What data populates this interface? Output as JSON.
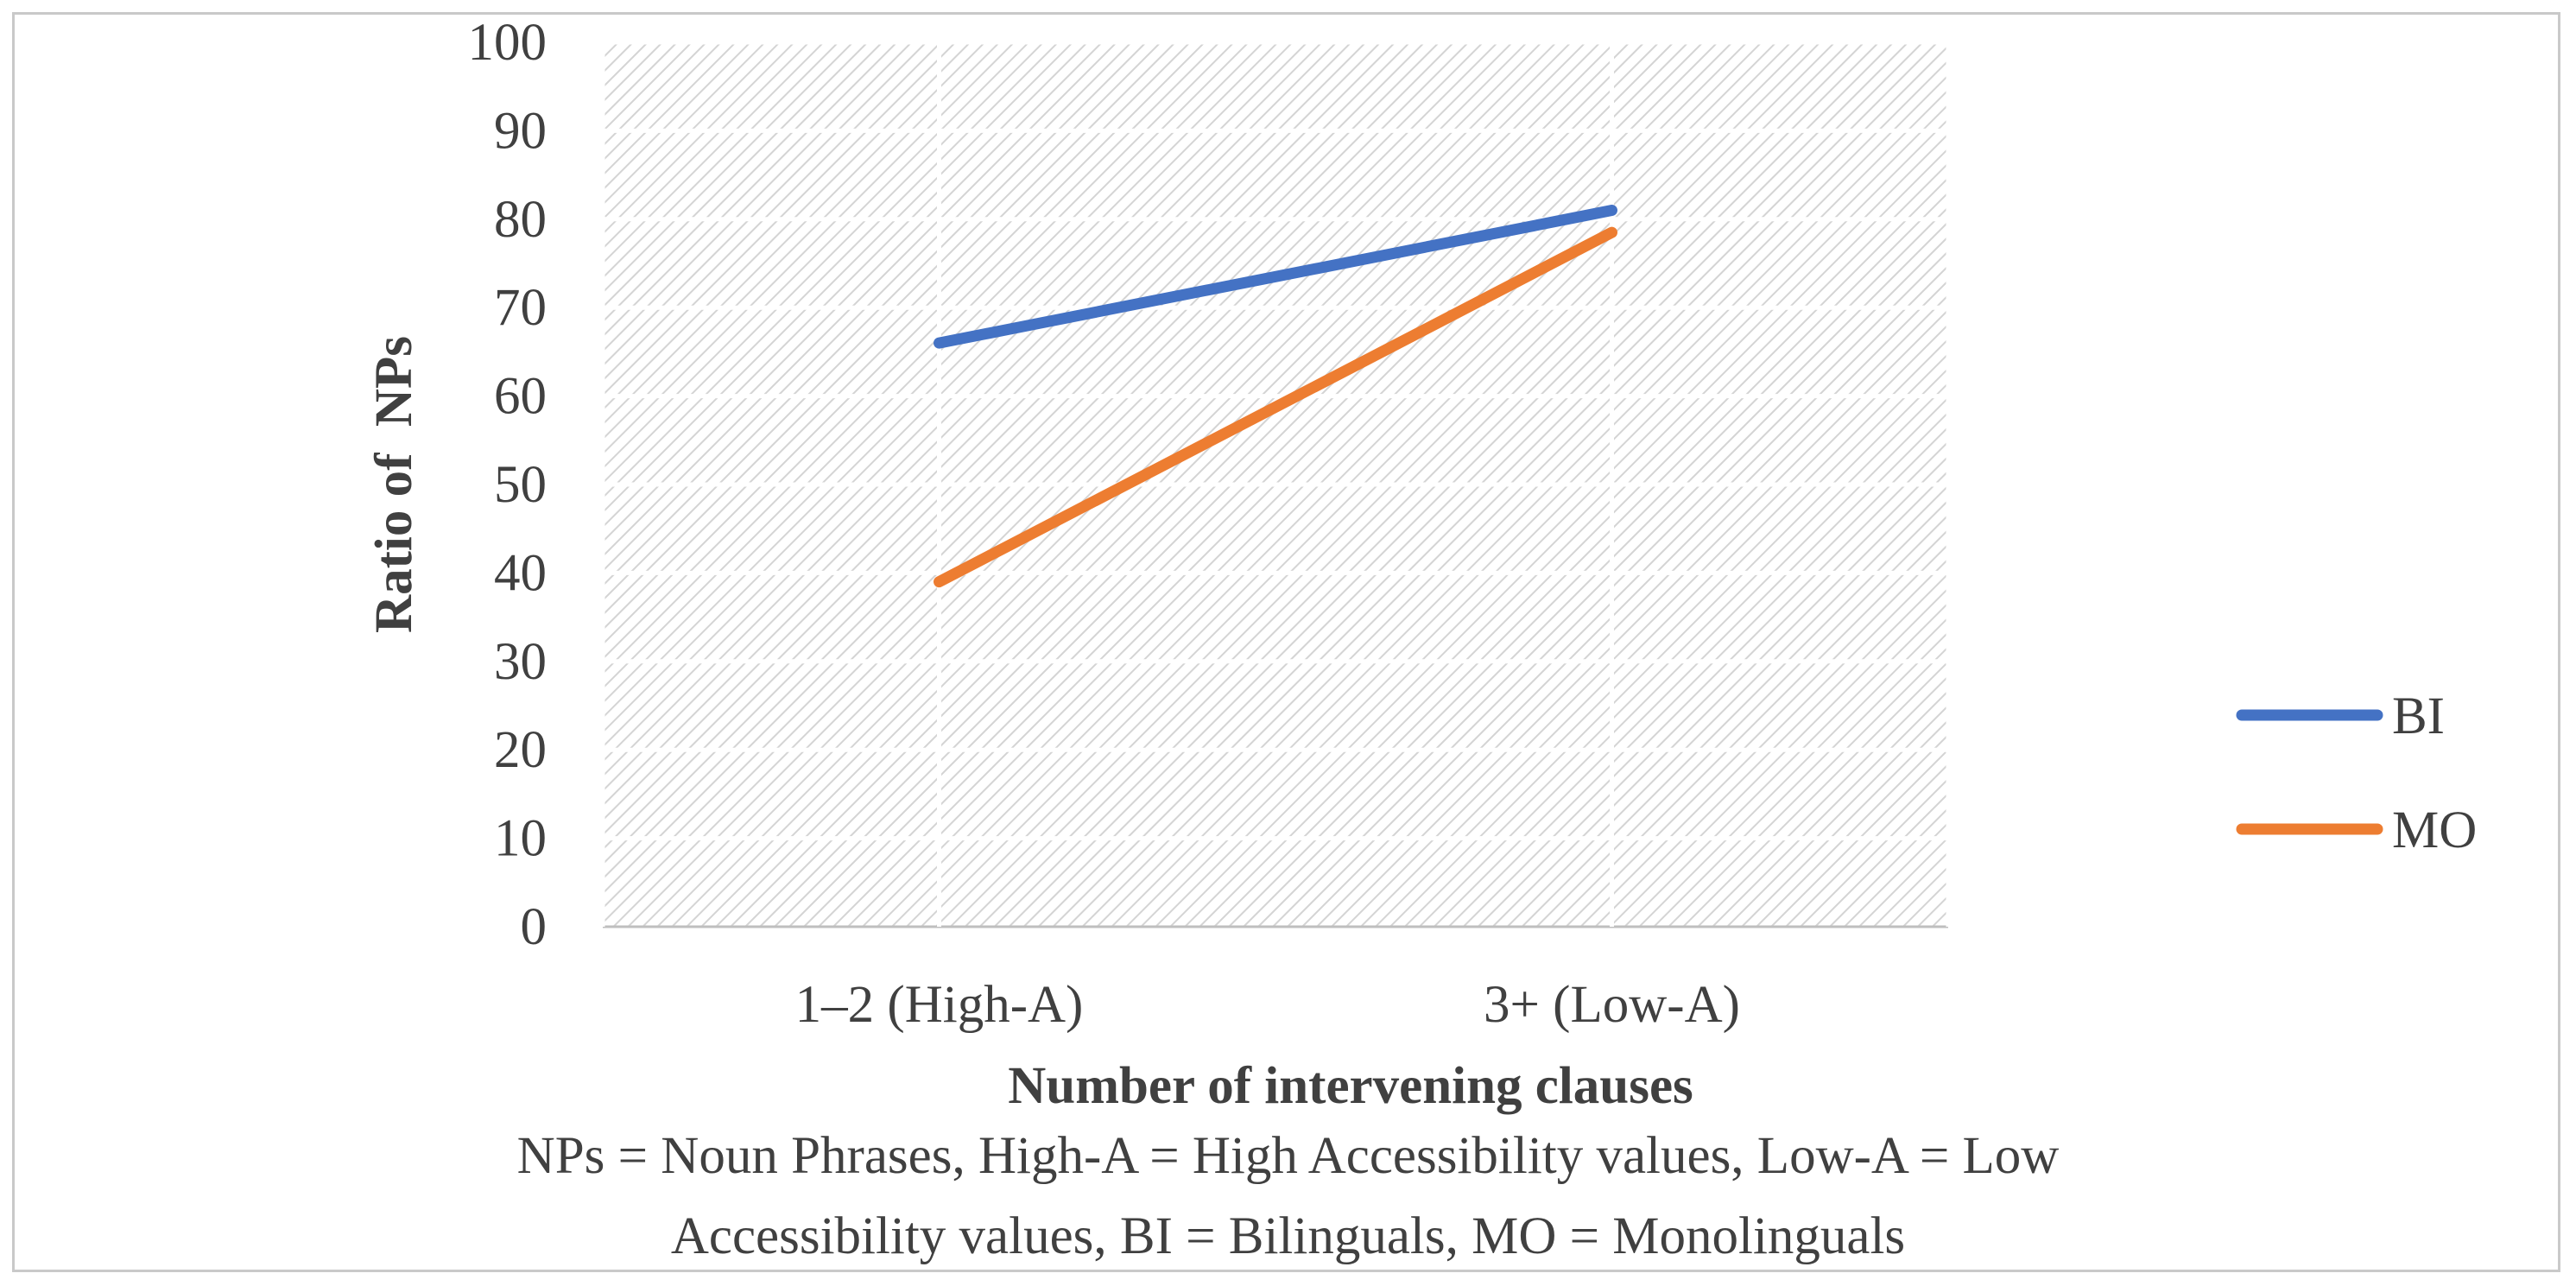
{
  "chart_data": {
    "type": "line",
    "categories": [
      "1–2 (High-A)",
      "3+ (Low-A)"
    ],
    "series": [
      {
        "name": "BI",
        "values": [
          66,
          81
        ],
        "color": "#4472C4"
      },
      {
        "name": "MO",
        "values": [
          39,
          78.5
        ],
        "color": "#ED7D31"
      }
    ],
    "xlabel": "Number of intervening clauses",
    "ylabel": "Ratio of  NPs",
    "ylim": [
      0,
      100
    ],
    "yticks": [
      0,
      10,
      20,
      30,
      40,
      50,
      60,
      70,
      80,
      90,
      100
    ],
    "grid": true,
    "legend": "right"
  },
  "caption": {
    "line1": "NPs = Noun Phrases, High-A = High Accessibility values, Low-A = Low",
    "line2": "Accessibility values, BI = Bilinguals, MO = Monolinguals"
  }
}
